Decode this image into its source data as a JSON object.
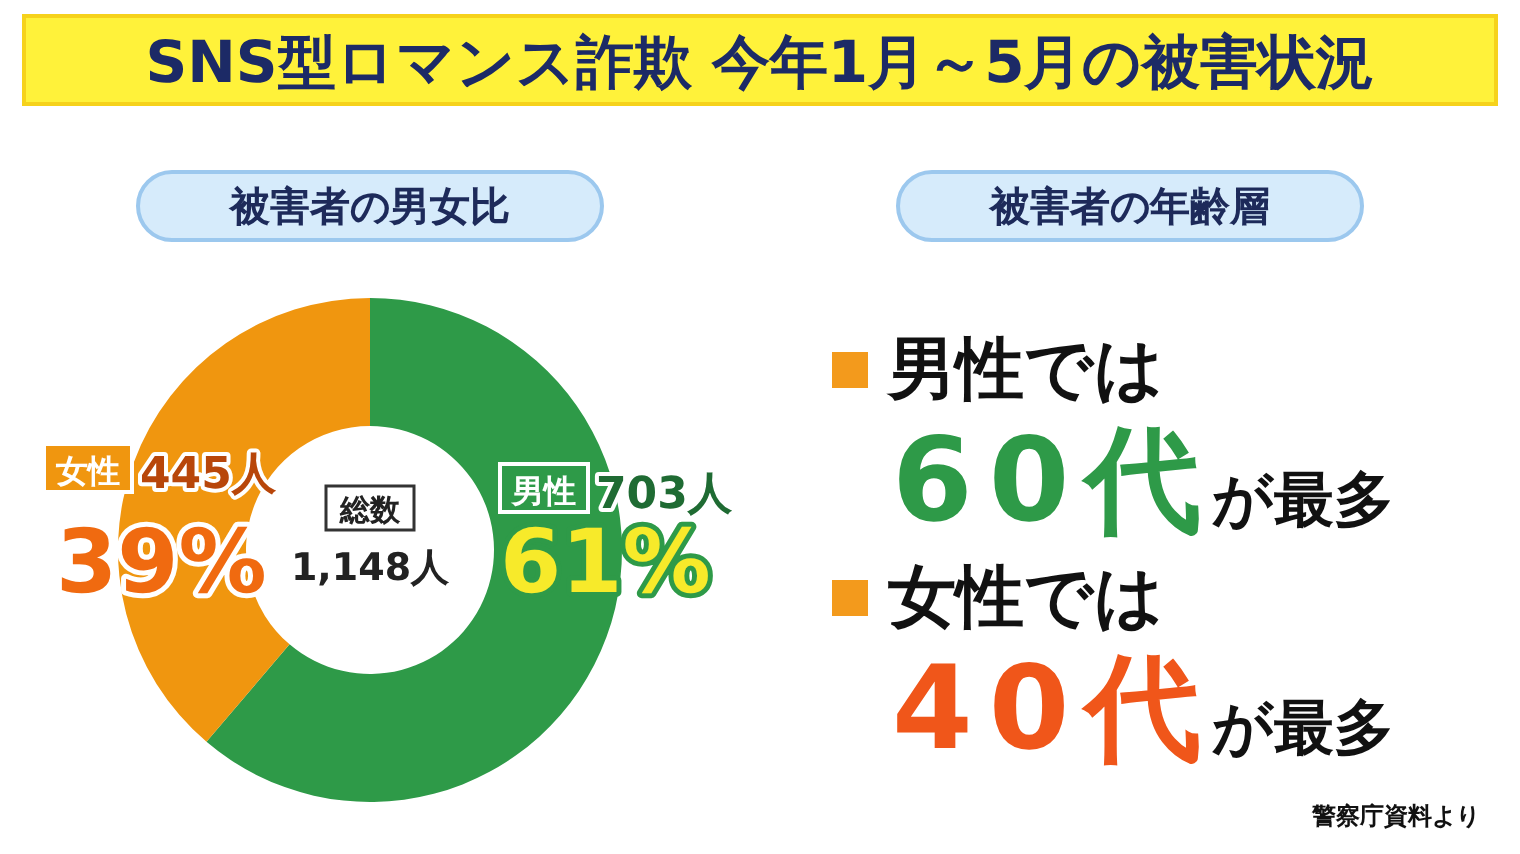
{
  "chart_data": [
    {
      "type": "donut",
      "title": "SNS型ロマンス詐欺 今年1月～5月の被害状況",
      "subtitle": "被害者の男女比",
      "categories": [
        "男性",
        "女性"
      ],
      "values": [
        703,
        445
      ],
      "colors": [
        "#2e9a48",
        "#f0960f"
      ],
      "value_labels": [
        "703人",
        "445人"
      ],
      "annotations": [
        "61%",
        "39%",
        "総数",
        "1,148人"
      ]
    },
    {
      "type": "other",
      "title": "被害者の年齢層",
      "annotations": [
        "男性では",
        "60代",
        "が最多",
        "女性では",
        "40代",
        "が最多",
        "警察庁資料より"
      ]
    }
  ]
}
